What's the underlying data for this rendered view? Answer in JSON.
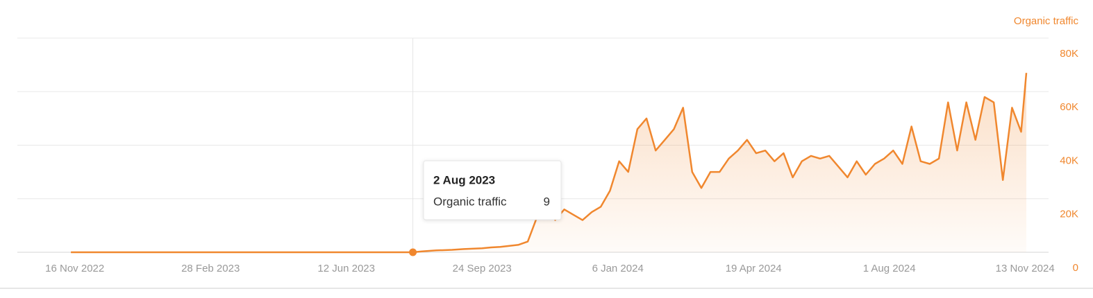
{
  "chart_data": {
    "type": "line",
    "y_axis_title": "Organic traffic",
    "x": [
      "2022-11-13",
      "2023-02-01",
      "2023-05-01",
      "2023-08-02",
      "2023-08-09",
      "2023-08-20",
      "2023-09-01",
      "2023-09-10",
      "2023-09-24",
      "2023-10-01",
      "2023-10-08",
      "2023-10-15",
      "2023-10-22",
      "2023-10-29",
      "2023-11-05",
      "2023-11-12",
      "2023-11-19",
      "2023-11-26",
      "2023-12-03",
      "2023-12-10",
      "2023-12-17",
      "2023-12-24",
      "2023-12-31",
      "2024-01-07",
      "2024-01-14",
      "2024-01-21",
      "2024-01-28",
      "2024-02-04",
      "2024-02-11",
      "2024-02-18",
      "2024-02-25",
      "2024-03-03",
      "2024-03-10",
      "2024-03-17",
      "2024-03-24",
      "2024-03-31",
      "2024-04-07",
      "2024-04-14",
      "2024-04-21",
      "2024-04-28",
      "2024-05-05",
      "2024-05-12",
      "2024-05-19",
      "2024-05-26",
      "2024-06-02",
      "2024-06-09",
      "2024-06-16",
      "2024-06-23",
      "2024-06-30",
      "2024-07-07",
      "2024-07-14",
      "2024-07-21",
      "2024-07-28",
      "2024-08-04",
      "2024-08-11",
      "2024-08-18",
      "2024-08-25",
      "2024-09-01",
      "2024-09-08",
      "2024-09-15",
      "2024-09-22",
      "2024-09-29",
      "2024-10-06",
      "2024-10-13",
      "2024-10-20",
      "2024-10-27",
      "2024-11-03",
      "2024-11-10",
      "2024-11-14"
    ],
    "series": [
      {
        "name": "Organic traffic",
        "color": "#f0872e",
        "values": [
          5,
          6,
          8,
          9,
          300,
          700,
          900,
          1200,
          1500,
          1800,
          2000,
          2400,
          2800,
          4000,
          13000,
          17000,
          12000,
          16000,
          14000,
          12000,
          15000,
          17000,
          23000,
          34000,
          30000,
          46000,
          50000,
          38000,
          42000,
          46000,
          54000,
          30000,
          24000,
          30000,
          30000,
          35000,
          38000,
          42000,
          37000,
          38000,
          34000,
          37000,
          28000,
          34000,
          36000,
          35000,
          36000,
          32000,
          28000,
          34000,
          29000,
          33000,
          35000,
          38000,
          33000,
          47000,
          34000,
          33000,
          35000,
          56000,
          38000,
          56000,
          42000,
          58000,
          56000,
          27000,
          54000,
          45000,
          67000
        ]
      }
    ],
    "xlim": [
      "2022-10-03",
      "2024-12-01"
    ],
    "xticks": [
      {
        "value": "2022-11-16",
        "label": "16 Nov 2022"
      },
      {
        "value": "2023-02-28",
        "label": "28 Feb 2023"
      },
      {
        "value": "2023-06-12",
        "label": "12 Jun 2023"
      },
      {
        "value": "2023-09-24",
        "label": "24 Sep 2023"
      },
      {
        "value": "2024-01-06",
        "label": "6 Jan 2024"
      },
      {
        "value": "2024-04-19",
        "label": "19 Apr 2024"
      },
      {
        "value": "2024-08-01",
        "label": "1 Aug 2024"
      },
      {
        "value": "2024-11-13",
        "label": "13 Nov 2024"
      }
    ],
    "ylim": [
      0,
      80000
    ],
    "yticks": [
      0,
      {
        "value": 20000,
        "label": "20K"
      },
      {
        "value": 40000,
        "label": "40K"
      },
      {
        "value": 60000,
        "label": "60K"
      },
      {
        "value": 80000,
        "label": "80K"
      }
    ],
    "grid": true,
    "tooltip": {
      "x": "2023-08-02",
      "title": "2 Aug 2023",
      "label": "Organic traffic",
      "value": 9
    }
  }
}
